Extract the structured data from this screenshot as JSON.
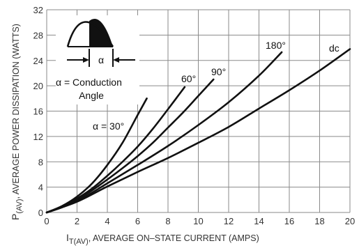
{
  "chart_data": {
    "type": "line",
    "xlabel_main": "I",
    "xlabel_sub": "T(AV)",
    "xlabel_rest": ", AVERAGE ON–STATE CURRENT (AMPS)",
    "ylabel_main": "P",
    "ylabel_sub": "(AV)",
    "ylabel_rest": ", AVERAGE POWER DISSIPATION (WATTS)",
    "xlim": [
      0,
      20
    ],
    "ylim": [
      0,
      32
    ],
    "xticks": [
      0,
      2,
      4,
      6,
      8,
      10,
      12,
      14,
      16,
      18,
      20
    ],
    "yticks": [
      0,
      4,
      8,
      12,
      16,
      20,
      24,
      28,
      32
    ],
    "grid": true,
    "series": [
      {
        "name": "α = 30°",
        "x": [
          0,
          1,
          2,
          3,
          4,
          5,
          6,
          6.6
        ],
        "y": [
          0,
          1.0,
          2.5,
          4.6,
          7.5,
          11.0,
          15.4,
          18.0
        ]
      },
      {
        "name": "60°",
        "x": [
          0,
          1,
          2,
          3,
          4,
          5,
          6,
          7,
          8,
          9.1
        ],
        "y": [
          0,
          0.9,
          2.2,
          3.8,
          5.8,
          8.0,
          10.4,
          13.2,
          16.3,
          19.8
        ]
      },
      {
        "name": "90°",
        "x": [
          0,
          1,
          2,
          3,
          4,
          5,
          6,
          7,
          8,
          9,
          10,
          11
        ],
        "y": [
          0,
          0.8,
          2.0,
          3.5,
          5.2,
          7.0,
          8.9,
          11.0,
          13.4,
          15.8,
          18.4,
          21.0
        ]
      },
      {
        "name": "180°",
        "x": [
          0,
          2,
          4,
          6,
          8,
          10,
          12,
          14,
          15.5
        ],
        "y": [
          0,
          1.8,
          4.6,
          7.5,
          10.5,
          13.8,
          17.4,
          21.6,
          25.3
        ]
      },
      {
        "name": "dc",
        "x": [
          0,
          2,
          4,
          6,
          8,
          10,
          12,
          14,
          16,
          18,
          20
        ],
        "y": [
          0,
          1.7,
          4.1,
          6.4,
          8.6,
          11.0,
          13.5,
          16.4,
          19.3,
          22.4,
          25.8
        ]
      }
    ],
    "series_labels": [
      "α = 30°",
      "60°",
      "90°",
      "180°",
      "dc"
    ],
    "inset": {
      "alpha_symbol": "α",
      "legend_line1": "α = Conduction",
      "legend_line2": "Angle"
    }
  }
}
